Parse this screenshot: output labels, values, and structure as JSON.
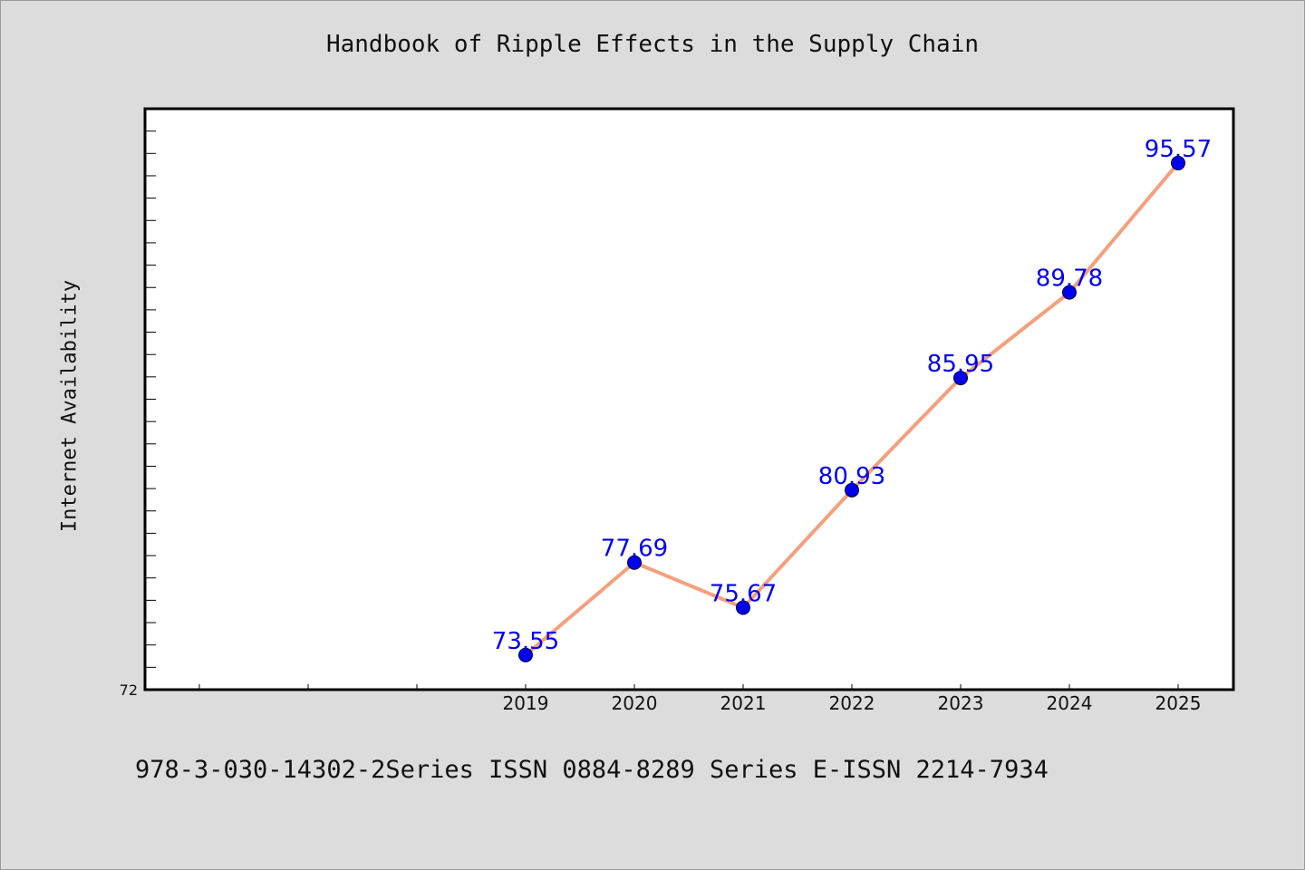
{
  "title": "Handbook of Ripple Effects in the Supply Chain",
  "footer": "978-3-030-14302-2Series ISSN 0884-8289 Series E-ISSN 2214-7934",
  "colors": {
    "background": "#dcdcdc",
    "plot_background": "#ffffff",
    "line": "#f4a07e",
    "marker": "#0000ee",
    "data_label": "#0000ee"
  },
  "chart_data": {
    "type": "line",
    "title": "Handbook of Ripple Effects in the Supply Chain",
    "xlabel": "",
    "ylabel": "Internet Availability",
    "categories": [
      "2019",
      "2020",
      "2021",
      "2022",
      "2023",
      "2024",
      "2025"
    ],
    "series": [
      {
        "values": [
          73.55,
          77.69,
          75.67,
          80.93,
          85.95,
          89.78,
          95.57
        ]
      }
    ],
    "y_tick_labels": [
      "72"
    ],
    "ylim": [
      72,
      98
    ],
    "grid": false,
    "legend": "none"
  }
}
